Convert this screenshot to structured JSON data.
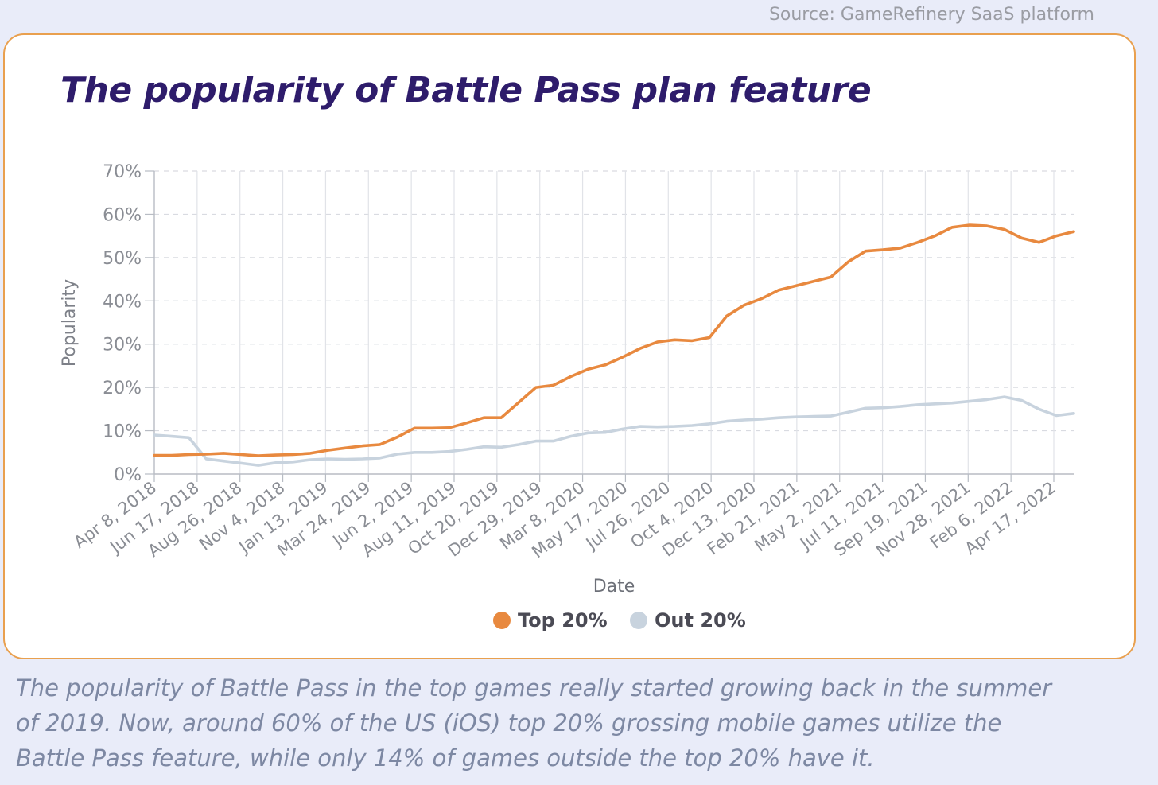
{
  "source": "Source: GameRefinery SaaS platform",
  "caption": "The popularity of Battle Pass in the top games really started growing back in the summer of 2019. Now, around 60% of the US (iOS) top 20% grossing mobile games utilize the Battle Pass feature, while only 14% of games outside the top 20% have it.",
  "colors": {
    "top": "#e8893f",
    "out": "#c8d3de",
    "title": "#2e1c6b",
    "border": "#e9a04f"
  },
  "chart_data": {
    "type": "line",
    "title": "The popularity of Battle Pass plan feature",
    "xlabel": "Date",
    "ylabel": "Popularity",
    "ylim": [
      0,
      70
    ],
    "yticks": [
      "0%",
      "10%",
      "20%",
      "30%",
      "40%",
      "50%",
      "60%",
      "70%"
    ],
    "x_tick_labels": [
      "Apr 8, 2018",
      "Jun 17, 2018",
      "Aug 26, 2018",
      "Nov 4, 2018",
      "Jan 13, 2019",
      "Mar 24, 2019",
      "Jun 2, 2019",
      "Aug 11, 2019",
      "Oct 20, 2019",
      "Dec 29, 2019",
      "Mar 8, 2020",
      "May 17, 2020",
      "Jul 26, 2020",
      "Oct 4, 2020",
      "Dec 13, 2020",
      "Feb 21, 2021",
      "May 2, 2021",
      "Jul 11, 2021",
      "Sep 19, 2021",
      "Nov 28, 2021",
      "Feb 6, 2022",
      "Apr 17, 2022"
    ],
    "x": [
      "Apr 8, 2018",
      "May 6, 2018",
      "Jun 3, 2018",
      "Jul 1, 2018",
      "Jul 29, 2018",
      "Aug 26, 2018",
      "Sep 23, 2018",
      "Oct 21, 2018",
      "Nov 18, 2018",
      "Dec 16, 2018",
      "Jan 13, 2019",
      "Feb 10, 2019",
      "Mar 10, 2019",
      "Apr 7, 2019",
      "May 5, 2019",
      "Jun 2, 2019",
      "Jun 30, 2019",
      "Jul 28, 2019",
      "Aug 25, 2019",
      "Sep 22, 2019",
      "Oct 20, 2019",
      "Nov 17, 2019",
      "Dec 15, 2019",
      "Jan 12, 2020",
      "Feb 9, 2020",
      "Mar 8, 2020",
      "Apr 5, 2020",
      "May 3, 2020",
      "May 31, 2020",
      "Jun 28, 2020",
      "Jul 26, 2020",
      "Aug 23, 2020",
      "Sep 20, 2020",
      "Oct 18, 2020",
      "Nov 15, 2020",
      "Dec 13, 2020",
      "Jan 10, 2021",
      "Feb 7, 2021",
      "Mar 7, 2021",
      "Apr 4, 2021",
      "May 2, 2021",
      "May 30, 2021",
      "Jun 27, 2021",
      "Jul 25, 2021",
      "Aug 22, 2021",
      "Sep 19, 2021",
      "Oct 17, 2021",
      "Nov 14, 2021",
      "Dec 12, 2021",
      "Jan 9, 2022",
      "Feb 6, 2022",
      "Mar 6, 2022",
      "Apr 3, 2022",
      "May 1, 2022"
    ],
    "series": [
      {
        "name": "Top 20%",
        "color": "#e8893f",
        "values": [
          4.3,
          4.3,
          4.5,
          4.6,
          4.8,
          4.5,
          4.2,
          4.4,
          4.5,
          4.8,
          5.5,
          6.0,
          6.5,
          6.8,
          8.5,
          10.6,
          10.6,
          10.7,
          11.8,
          13.0,
          13.0,
          16.5,
          20.0,
          20.5,
          22.5,
          24.2,
          25.2,
          27.0,
          29.0,
          30.5,
          31.0,
          30.8,
          31.5,
          36.5,
          39.0,
          40.5,
          42.5,
          43.5,
          44.5,
          45.5,
          49.0,
          51.5,
          51.8,
          52.2,
          53.5,
          55.0,
          57.0,
          57.5,
          57.3,
          56.5,
          54.5,
          53.5,
          55.0,
          56.0
        ]
      },
      {
        "name": "Out 20%",
        "color": "#c8d3de",
        "values": [
          9.0,
          8.7,
          8.4,
          3.5,
          3.0,
          2.5,
          2.0,
          2.6,
          2.8,
          3.3,
          3.5,
          3.4,
          3.5,
          3.7,
          4.6,
          5.0,
          5.0,
          5.2,
          5.7,
          6.3,
          6.2,
          6.8,
          7.6,
          7.6,
          8.7,
          9.5,
          9.6,
          10.4,
          11.0,
          10.9,
          11.0,
          11.2,
          11.6,
          12.2,
          12.5,
          12.7,
          13.0,
          13.2,
          13.3,
          13.4,
          14.3,
          15.2,
          15.3,
          15.6,
          16.0,
          16.2,
          16.4,
          16.8,
          17.2,
          17.8,
          17.0,
          15.0,
          13.5,
          14.0
        ]
      }
    ],
    "grid": true,
    "legend": "bottom-center"
  }
}
